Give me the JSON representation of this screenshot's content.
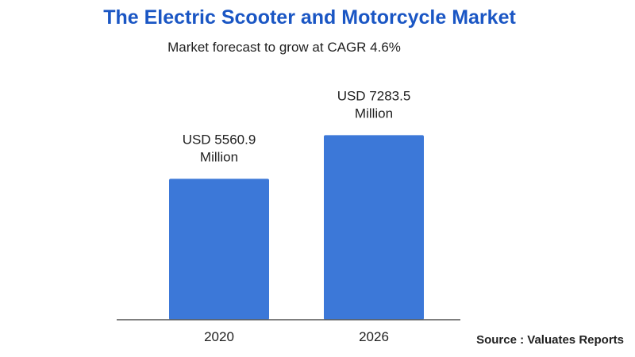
{
  "chart_data": {
    "type": "bar",
    "title": "The Electric Scooter and Motorcycle Market",
    "subtitle": "Market forecast to grow at CAGR 4.6%",
    "categories": [
      "2020",
      "2026"
    ],
    "values": [
      5560.9,
      7283.5
    ],
    "data_labels": [
      [
        "USD 5560.9",
        "Million"
      ],
      [
        "USD 7283.5",
        "Million"
      ]
    ],
    "xlabel": "",
    "ylabel": "",
    "ylim": [
      0,
      8985
    ],
    "grid": false,
    "legend": "none",
    "bar_color": "#3c78d8",
    "axis_color": "#555555",
    "source": "Source : Valuates Reports"
  }
}
